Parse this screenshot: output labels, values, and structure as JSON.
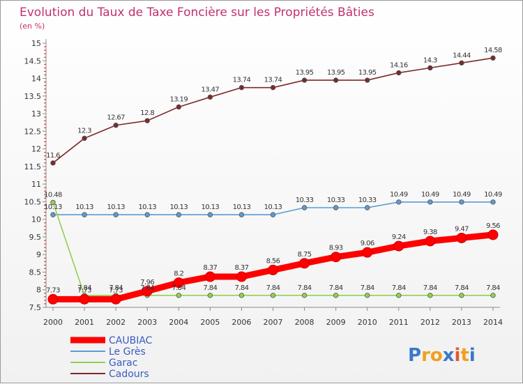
{
  "chart_data": {
    "type": "line",
    "title": "Evolution du Taux de Taxe Foncière sur les Propriétés Bâties",
    "unit_label": "(en %)",
    "xlabel": "",
    "ylabel": "",
    "x": [
      2000,
      2001,
      2002,
      2003,
      2004,
      2005,
      2006,
      2007,
      2008,
      2009,
      2010,
      2011,
      2012,
      2013,
      2014
    ],
    "x_tick_labels": [
      "2000",
      "2001",
      "2002",
      "2003",
      "2004",
      "2005",
      "2006",
      "2007",
      "2008",
      "2009",
      "2010",
      "2011",
      "2012",
      "2013",
      "2014"
    ],
    "ylim": [
      7.5,
      15
    ],
    "y_tick_labels": [
      "7.5",
      "8",
      "8.5",
      "9",
      "9.5",
      "10",
      "10.5",
      "11",
      "11.5",
      "12",
      "12.5",
      "13",
      "13.5",
      "14",
      "14.5",
      "15"
    ],
    "grid": false,
    "legend_position": "bottom-left",
    "series": [
      {
        "name": "CAUBIAC",
        "color": "#ff0000",
        "emphasis": "bold",
        "values": [
          7.73,
          7.73,
          7.73,
          7.96,
          8.2,
          8.37,
          8.37,
          8.56,
          8.75,
          8.93,
          9.06,
          9.24,
          9.38,
          9.47,
          9.56
        ],
        "labels": [
          "7.73",
          "7.73",
          "7.73",
          "7.96",
          "8.2",
          "8.37",
          "8.37",
          "8.56",
          "8.75",
          "8.93",
          "9.06",
          "9.24",
          "9.38",
          "9.47",
          "9.56"
        ]
      },
      {
        "name": "Le Grès",
        "color": "#5b9bd5",
        "values": [
          10.13,
          10.13,
          10.13,
          10.13,
          10.13,
          10.13,
          10.13,
          10.13,
          10.33,
          10.33,
          10.33,
          10.49,
          10.49,
          10.49,
          10.49
        ],
        "labels": [
          "10.13",
          "10.13",
          "10.13",
          "10.13",
          "10.13",
          "10.13",
          "10.13",
          "10.13",
          "10.33",
          "10.33",
          "10.33",
          "10.49",
          "10.49",
          "10.49",
          "10.49"
        ]
      },
      {
        "name": "Garac",
        "color": "#92d050",
        "values": [
          10.48,
          7.84,
          7.84,
          7.84,
          7.84,
          7.84,
          7.84,
          7.84,
          7.84,
          7.84,
          7.84,
          7.84,
          7.84,
          7.84,
          7.84
        ],
        "labels": [
          "10.48",
          "7.84",
          "7.84",
          "7.84",
          "7.84",
          "7.84",
          "7.84",
          "7.84",
          "7.84",
          "7.84",
          "7.84",
          "7.84",
          "7.84",
          "7.84",
          "7.84"
        ]
      },
      {
        "name": "Cadours",
        "color": "#7b2a2a",
        "values": [
          11.6,
          12.3,
          12.67,
          12.8,
          13.19,
          13.47,
          13.74,
          13.74,
          13.95,
          13.95,
          13.95,
          14.16,
          14.3,
          14.44,
          14.58
        ],
        "labels": [
          "11.6",
          "12.3",
          "12.67",
          "12.8",
          "13.19",
          "13.47",
          "13.74",
          "13.74",
          "13.95",
          "13.95",
          "13.95",
          "14.16",
          "14.3",
          "14.44",
          "14.58"
        ]
      }
    ]
  },
  "logo": {
    "letters": [
      "P",
      "r",
      "o",
      "x",
      "i",
      "t",
      "i"
    ],
    "colors": [
      "#3a78c9",
      "#f0a020",
      "#f0a020",
      "#3a78c9",
      "#e05a30",
      "#f0a020",
      "#3a78c9"
    ]
  }
}
